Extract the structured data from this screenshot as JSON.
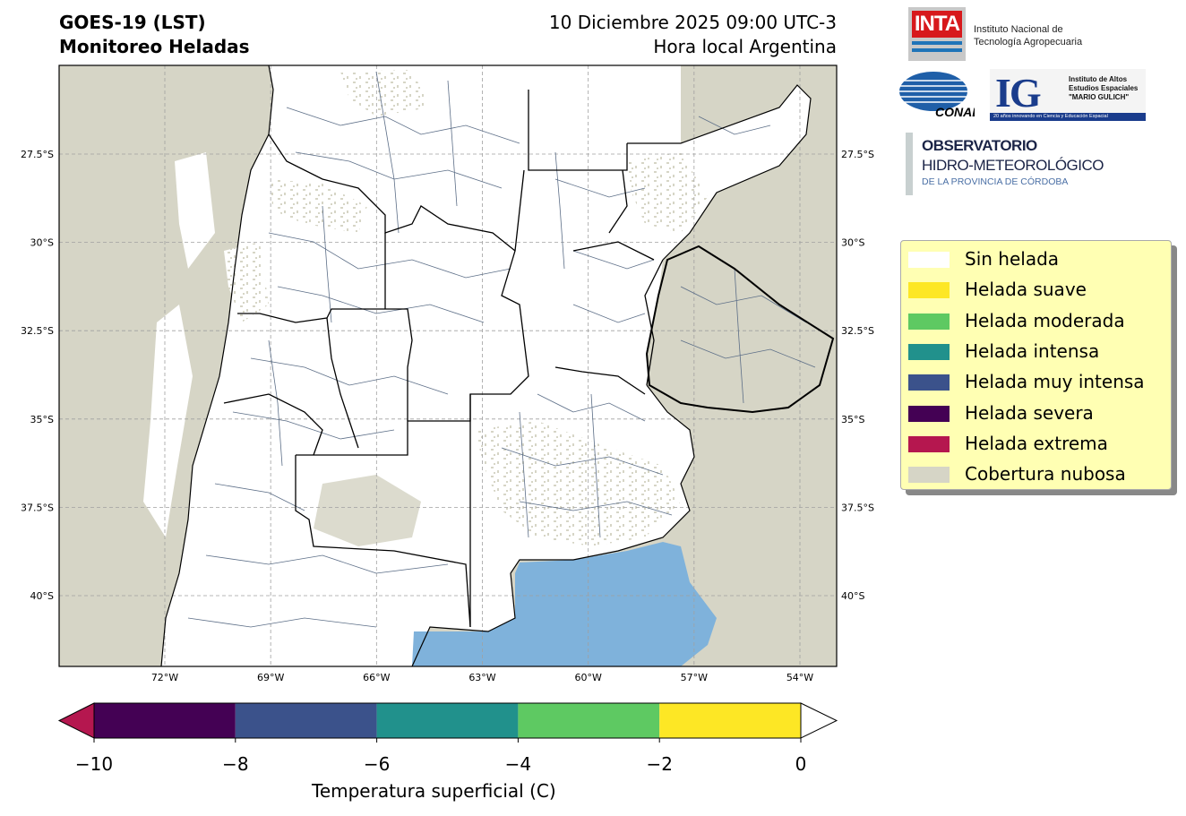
{
  "header": {
    "title_line1": "GOES-19 (LST)",
    "title_line2": "Monitoreo Heladas",
    "date_line": "10 Diciembre 2025 09:00 UTC-3",
    "tz_line": "Hora local Argentina"
  },
  "logos": {
    "inta_mark": "INTA",
    "inta_name_line1": "Instituto Nacional de",
    "inta_name_line2": "Tecnología Agropecuaria",
    "conae_mark": "CONAE",
    "ig_mark": "IG",
    "ig_line1": "Instituto de Altos",
    "ig_line2": "Estudios Espaciales",
    "ig_line3": "\"MARIO GULICH\"",
    "ig_band": "20 años innovando en Ciencia y Educación Espacial",
    "obs_line1": "OBSERVATORIO",
    "obs_line2": "HIDRO-METEOROLÓGICO",
    "obs_line3": "DE LA PROVINCIA DE CÓRDOBA"
  },
  "map": {
    "lat_labels": [
      "27.5°S",
      "30°S",
      "32.5°S",
      "35°S",
      "37.5°S",
      "40°S"
    ],
    "lat_values": [
      -27.5,
      -30,
      -32.5,
      -35,
      -37.5,
      -40
    ],
    "lon_labels": [
      "72°W",
      "69°W",
      "66°W",
      "63°W",
      "60°W",
      "57°W",
      "54°W"
    ],
    "lon_values": [
      -72,
      -69,
      -66,
      -63,
      -60,
      -57,
      -54
    ],
    "lon_range": [
      -75,
      -53
    ],
    "lat_range": [
      -42,
      -25
    ],
    "colors": {
      "land": "#ffffff",
      "cloud": "#d6d5c6",
      "ocean_shallow": "#7fb2db",
      "boundary": "#000000",
      "departments": "#5c6e87",
      "grid": "#a0a0a0"
    }
  },
  "legend": {
    "items": [
      {
        "label": "Sin helada",
        "color": "#ffffff"
      },
      {
        "label": "Helada suave",
        "color": "#fde725"
      },
      {
        "label": "Helada moderada",
        "color": "#5ec962"
      },
      {
        "label": "Helada intensa",
        "color": "#21918c"
      },
      {
        "label": "Helada muy intensa",
        "color": "#3b528b"
      },
      {
        "label": "Helada severa",
        "color": "#440154"
      },
      {
        "label": "Helada extrema",
        "color": "#b5174f"
      },
      {
        "label": "Cobertura nubosa",
        "color": "#d6d5c6"
      }
    ]
  },
  "colorbar": {
    "label": "Temperatura superficial (C)",
    "ticks": [
      "−10",
      "−8",
      "−6",
      "−4",
      "−2",
      "0"
    ],
    "tick_values": [
      -10,
      -8,
      -6,
      -4,
      -2,
      0
    ],
    "segments": [
      {
        "from": -10,
        "to": -8,
        "color": "#440154"
      },
      {
        "from": -8,
        "to": -6,
        "color": "#3b528b"
      },
      {
        "from": -6,
        "to": -4,
        "color": "#21918c"
      },
      {
        "from": -4,
        "to": -2,
        "color": "#5ec962"
      },
      {
        "from": -2,
        "to": 0,
        "color": "#fde725"
      }
    ],
    "under_color": "#b5174f",
    "over_color": "#ffffff"
  }
}
